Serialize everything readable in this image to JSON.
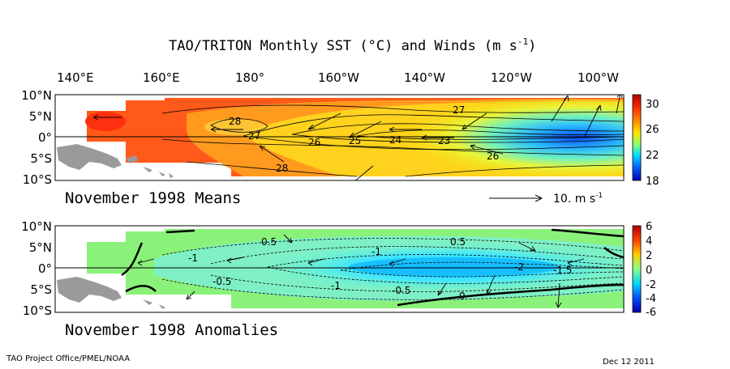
{
  "figure": {
    "title": "TAO/TRITON Monthly SST (°C) and Winds (m s",
    "title_exponent": "-1",
    "title_close": ")",
    "footer_left": "TAO Project Office/PMEL/NOAA",
    "footer_right": "Dec 12 2011"
  },
  "chart_data": [
    {
      "type": "heatmap",
      "caption": "November 1998 Means",
      "x_ticks": [
        "140°E",
        "160°E",
        "180°",
        "160°W",
        "140°W",
        "120°W",
        "100°W"
      ],
      "y_ticks": [
        "10°N",
        "5°N",
        "0°",
        "5°S",
        "10°S"
      ],
      "xlim": [
        135,
        267
      ],
      "ylim": [
        -10,
        10
      ],
      "colorbar": {
        "min": 18,
        "max": 31,
        "ticks": [
          30,
          26,
          22,
          18
        ]
      },
      "contour_labels": [
        "28",
        "27",
        "26",
        "25",
        "24",
        "23",
        "27",
        "26",
        "28"
      ],
      "wind_scale_label": "10. m s",
      "wind_scale_exponent": "-1"
    },
    {
      "type": "heatmap",
      "caption": "November 1998 Anomalies",
      "x_ticks": [],
      "y_ticks": [
        "10°N",
        "5°N",
        "0°",
        "5°S",
        "10°S"
      ],
      "xlim": [
        135,
        267
      ],
      "ylim": [
        -10,
        10
      ],
      "colorbar": {
        "min": -6,
        "max": 6,
        "ticks": [
          6,
          4,
          2,
          0,
          -2,
          -4,
          -6
        ]
      },
      "contour_labels": [
        "0.5",
        "-1",
        "-0.5",
        "-1",
        "-0.5",
        "0.5",
        "-1",
        "-2",
        "-1.5",
        "0"
      ]
    }
  ]
}
